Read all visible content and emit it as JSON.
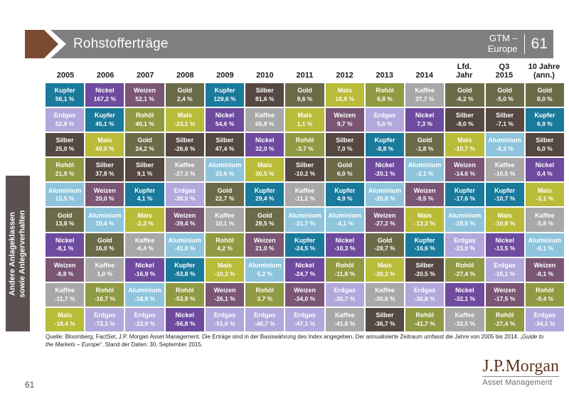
{
  "header": {
    "title": "Rohstofferträge",
    "gtm_line1": "GTM –",
    "gtm_line2": "Europe",
    "page": "61"
  },
  "sidebar": {
    "line1": "Andere Anlageklassen",
    "line2": "sowie Anlegerverhalten"
  },
  "footer": {
    "part1": "Quelle: Bloomberg, FactSet, J.P. Morgan Asset Management. Die Erträge sind in der Basiswährung des Index angegeben. Der annualisierte Zeitraum umfasst die Jahre von 2005 bis 2014. „",
    "italic": "Guide to the Markets – Europe",
    "part2": "“. Stand der Daten: 30. September 2015."
  },
  "page_number": "61",
  "logo": {
    "brand": "J.P.Morgan",
    "subbrand": "Asset Management"
  },
  "chart_data": {
    "type": "heatmap",
    "title": "Rohstofferträge",
    "description": "Annual commodity returns quilt, best-to-worst per column, values in %",
    "colors": {
      "Kupfer": "#1a7a9b",
      "Nickel": "#6e4b9e",
      "Weizen": "#7a5674",
      "Gold": "#6b6b4a",
      "Silber": "#554741",
      "Erdgas": "#b2a8db",
      "Rohöl": "#8f9a42",
      "Mais": "#b8bc39",
      "Kaffee": "#a8a8a8",
      "Aluminium": "#8ec5dd"
    },
    "columns": [
      {
        "header": [
          "2005"
        ],
        "cells": [
          {
            "n": "Kupfer",
            "v": "56,1 %"
          },
          {
            "n": "Erdgas",
            "v": "52,8 %"
          },
          {
            "n": "Silber",
            "v": "25,0 %"
          },
          {
            "n": "Rohöl",
            "v": "21,9 %"
          },
          {
            "n": "Aluminium",
            "v": "15,5 %"
          },
          {
            "n": "Gold",
            "v": "13,8 %"
          },
          {
            "n": "Nickel",
            "v": "-8,1 %"
          },
          {
            "n": "Weizen",
            "v": "-8,8 %"
          },
          {
            "n": "Kaffee",
            "v": "-11,7 %"
          },
          {
            "n": "Mais",
            "v": "-18,4 %"
          }
        ]
      },
      {
        "header": [
          "2006"
        ],
        "cells": [
          {
            "n": "Nickel",
            "v": "167,2 %"
          },
          {
            "n": "Kupfer",
            "v": "45,1 %"
          },
          {
            "n": "Mais",
            "v": "40,0 %"
          },
          {
            "n": "Silber",
            "v": "37,8 %"
          },
          {
            "n": "Weizen",
            "v": "20,0 %"
          },
          {
            "n": "Aluminium",
            "v": "19,4 %"
          },
          {
            "n": "Gold",
            "v": "16,0 %"
          },
          {
            "n": "Kaffee",
            "v": "1,0 %"
          },
          {
            "n": "Rohöl",
            "v": "-16,7 %"
          },
          {
            "n": "Erdgas",
            "v": "-72,1 %"
          }
        ]
      },
      {
        "header": [
          "2007"
        ],
        "cells": [
          {
            "n": "Weizen",
            "v": "52,1 %"
          },
          {
            "n": "Rohöl",
            "v": "40,1 %"
          },
          {
            "n": "Gold",
            "v": "24,2 %"
          },
          {
            "n": "Silber",
            "v": "9,1 %"
          },
          {
            "n": "Kupfer",
            "v": "4,1 %"
          },
          {
            "n": "Mais",
            "v": "-2,3 %"
          },
          {
            "n": "Kaffee",
            "v": "-6,4 %"
          },
          {
            "n": "Nickel",
            "v": "-16,9 %"
          },
          {
            "n": "Aluminium",
            "v": "-18,9 %"
          },
          {
            "n": "Erdgas",
            "v": "-22,9 %"
          }
        ]
      },
      {
        "header": [
          "2008"
        ],
        "cells": [
          {
            "n": "Gold",
            "v": "2,4 %"
          },
          {
            "n": "Mais",
            "v": "-23,1 %"
          },
          {
            "n": "Silber",
            "v": "-26,6 %"
          },
          {
            "n": "Kaffee",
            "v": "-27,3 %"
          },
          {
            "n": "Erdgas",
            "v": "-38,0 %"
          },
          {
            "n": "Weizen",
            "v": "-39,4 %"
          },
          {
            "n": "Aluminium",
            "v": "-41,0 %"
          },
          {
            "n": "Kupfer",
            "v": "-53,8 %"
          },
          {
            "n": "Rohöl",
            "v": "-53,9 %"
          },
          {
            "n": "Nickel",
            "v": "-56,8 %"
          }
        ]
      },
      {
        "header": [
          "2009"
        ],
        "cells": [
          {
            "n": "Kupfer",
            "v": "129,6 %"
          },
          {
            "n": "Nickel",
            "v": "54,6 %"
          },
          {
            "n": "Silber",
            "v": "47,4 %"
          },
          {
            "n": "Aluminium",
            "v": "33,6 %"
          },
          {
            "n": "Gold",
            "v": "22,7 %"
          },
          {
            "n": "Kaffee",
            "v": "10,1 %"
          },
          {
            "n": "Rohöl",
            "v": "4,2 %"
          },
          {
            "n": "Mais",
            "v": "-10,3 %"
          },
          {
            "n": "Weizen",
            "v": "-26,1 %"
          },
          {
            "n": "Erdgas",
            "v": "-51,6 %"
          }
        ]
      },
      {
        "header": [
          "2010"
        ],
        "cells": [
          {
            "n": "Silber",
            "v": "81,6 %"
          },
          {
            "n": "Kaffee",
            "v": "66,8 %"
          },
          {
            "n": "Nickel",
            "v": "32,0 %"
          },
          {
            "n": "Mais",
            "v": "30,5 %"
          },
          {
            "n": "Kupfer",
            "v": "29,4 %"
          },
          {
            "n": "Gold",
            "v": "28,5 %"
          },
          {
            "n": "Weizen",
            "v": "21,0 %"
          },
          {
            "n": "Aluminium",
            "v": "5,2 %"
          },
          {
            "n": "Rohöl",
            "v": "3,7 %"
          },
          {
            "n": "Erdgas",
            "v": "-40,7 %"
          }
        ]
      },
      {
        "header": [
          "2011"
        ],
        "cells": [
          {
            "n": "Gold",
            "v": "9,6 %"
          },
          {
            "n": "Mais",
            "v": "1,1 %"
          },
          {
            "n": "Rohöl",
            "v": "-3,7 %"
          },
          {
            "n": "Silber",
            "v": "-10,2 %"
          },
          {
            "n": "Kaffee",
            "v": "-11,2 %"
          },
          {
            "n": "Aluminium",
            "v": "-21,7 %"
          },
          {
            "n": "Kupfer",
            "v": "-24,5 %"
          },
          {
            "n": "Nickel",
            "v": "-24,7 %"
          },
          {
            "n": "Weizen",
            "v": "-34,0 %"
          },
          {
            "n": "Erdgas",
            "v": "-47,1 %"
          }
        ]
      },
      {
        "header": [
          "2012"
        ],
        "cells": [
          {
            "n": "Mais",
            "v": "18,9 %"
          },
          {
            "n": "Weizen",
            "v": "9,7 %"
          },
          {
            "n": "Silber",
            "v": "7,0 %"
          },
          {
            "n": "Gold",
            "v": "6,0 %"
          },
          {
            "n": "Kupfer",
            "v": "4,9 %"
          },
          {
            "n": "Aluminium",
            "v": "-4,1 %"
          },
          {
            "n": "Nickel",
            "v": "-10,3 %"
          },
          {
            "n": "Rohöl",
            "v": "-11,8 %"
          },
          {
            "n": "Erdgas",
            "v": "-30,7 %"
          },
          {
            "n": "Kaffee",
            "v": "-41,6 %"
          }
        ]
      },
      {
        "header": [
          "2013"
        ],
        "cells": [
          {
            "n": "Rohöl",
            "v": "6,8 %"
          },
          {
            "n": "Erdgas",
            "v": "5,0 %"
          },
          {
            "n": "Kupfer",
            "v": "-8,8 %"
          },
          {
            "n": "Nickel",
            "v": "-20,1 %"
          },
          {
            "n": "Aluminium",
            "v": "-20,8 %"
          },
          {
            "n": "Weizen",
            "v": "-27,2 %"
          },
          {
            "n": "Gold",
            "v": "-28,7 %"
          },
          {
            "n": "Mais",
            "v": "-30,3 %"
          },
          {
            "n": "Kaffee",
            "v": "-30,6 %"
          },
          {
            "n": "Silber",
            "v": "-36,7 %"
          }
        ]
      },
      {
        "header": [
          "2014"
        ],
        "cells": [
          {
            "n": "Kaffee",
            "v": "37,7 %"
          },
          {
            "n": "Nickel",
            "v": "7,3 %"
          },
          {
            "n": "Gold",
            "v": "-1,8 %"
          },
          {
            "n": "Aluminium",
            "v": "-3,1 %"
          },
          {
            "n": "Weizen",
            "v": "-9,5 %"
          },
          {
            "n": "Mais",
            "v": "-13,3 %"
          },
          {
            "n": "Kupfer",
            "v": "-16,6 %"
          },
          {
            "n": "Silber",
            "v": "-20,5 %"
          },
          {
            "n": "Erdgas",
            "v": "-30,8 %"
          },
          {
            "n": "Rohöl",
            "v": "-41,7 %"
          }
        ]
      },
      {
        "header": [
          "Lfd.",
          "Jahr"
        ],
        "cells": [
          {
            "n": "Gold",
            "v": "-6,2 %"
          },
          {
            "n": "Silber",
            "v": "-8,0 %"
          },
          {
            "n": "Mais",
            "v": "-10,7 %"
          },
          {
            "n": "Weizen",
            "v": "-14,6 %"
          },
          {
            "n": "Kupfer",
            "v": "-17,6 %"
          },
          {
            "n": "Aluminium",
            "v": "-18,5 %"
          },
          {
            "n": "Erdgas",
            "v": "-23,0 %"
          },
          {
            "n": "Rohöl",
            "v": "-27,4 %"
          },
          {
            "n": "Nickel",
            "v": "-32,1 %"
          },
          {
            "n": "Kaffee",
            "v": "-32,5 %"
          }
        ]
      },
      {
        "header": [
          "Q3",
          "2015"
        ],
        "cells": [
          {
            "n": "Gold",
            "v": "-5,0 %"
          },
          {
            "n": "Silber",
            "v": "-7,1 %"
          },
          {
            "n": "Aluminium",
            "v": "-8,3 %"
          },
          {
            "n": "Kaffee",
            "v": "-10,5 %"
          },
          {
            "n": "Kupfer",
            "v": "-10,7 %"
          },
          {
            "n": "Mais",
            "v": "-10,8 %"
          },
          {
            "n": "Nickel",
            "v": "-13,5 %"
          },
          {
            "n": "Erdgas",
            "v": "-15,1 %"
          },
          {
            "n": "Weizen",
            "v": "-17,5 %"
          },
          {
            "n": "Rohöl",
            "v": "-27,4 %"
          }
        ]
      },
      {
        "header": [
          "10 Jahre",
          "(ann.)"
        ],
        "cells": [
          {
            "n": "Gold",
            "v": "8,0 %"
          },
          {
            "n": "Kupfer",
            "v": "6,9 %"
          },
          {
            "n": "Silber",
            "v": "6,0 %"
          },
          {
            "n": "Nickel",
            "v": "0,4 %"
          },
          {
            "n": "Mais",
            "v": "-3,1 %"
          },
          {
            "n": "Kaffee",
            "v": "-5,8 %"
          },
          {
            "n": "Aluminium",
            "v": "-6,1 %"
          },
          {
            "n": "Weizen",
            "v": "-8,1 %"
          },
          {
            "n": "Rohöl",
            "v": "-9,4 %"
          },
          {
            "n": "Erdgas",
            "v": "-34,1 %"
          }
        ]
      }
    ]
  }
}
